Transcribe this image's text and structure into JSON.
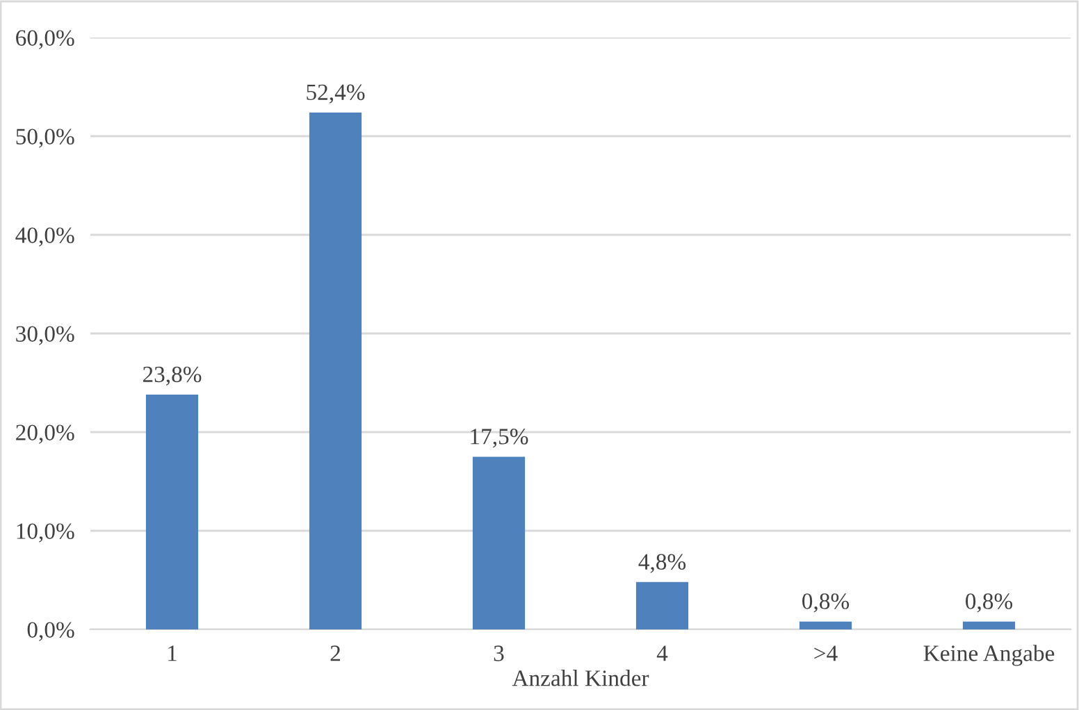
{
  "chart_data": {
    "type": "bar",
    "xlabel": "Anzahl Kinder",
    "categories": [
      "1",
      "2",
      "3",
      "4",
      ">4",
      "Keine Angabe"
    ],
    "values": [
      23.8,
      52.4,
      17.5,
      4.8,
      0.8,
      0.8
    ],
    "value_labels": [
      "23,8%",
      "52,4%",
      "17,5%",
      "4,8%",
      "0,8%",
      "0,8%"
    ],
    "color": "#4f81bd",
    "ylim": [
      0,
      60
    ],
    "yticks": [
      {
        "value": 0,
        "label": "0,0%"
      },
      {
        "value": 10,
        "label": "10,0%"
      },
      {
        "value": 20,
        "label": "20,0%"
      },
      {
        "value": 30,
        "label": "30,0%"
      },
      {
        "value": 40,
        "label": "40,0%"
      },
      {
        "value": 50,
        "label": "50,0%"
      },
      {
        "value": 60,
        "label": "60,0%"
      }
    ],
    "grid": "y",
    "legend": false
  }
}
